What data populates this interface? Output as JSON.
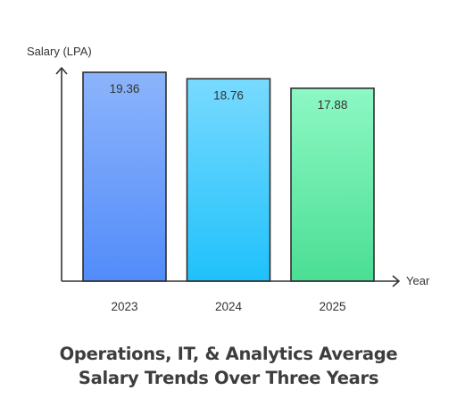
{
  "chart_data": {
    "type": "bar",
    "title_lines": [
      "Operations, IT, & Analytics Average",
      "Salary Trends Over Three Years"
    ],
    "xlabel": "Year",
    "ylabel": "Salary (LPA)",
    "categories": [
      "2023",
      "2024",
      "2025"
    ],
    "values": [
      19.36,
      18.76,
      17.88
    ],
    "value_labels": [
      "19.36",
      "18.76",
      "17.88"
    ],
    "ylim": [
      0,
      19.36
    ],
    "grid": false,
    "legend": "none",
    "bar_gradients": [
      {
        "top": "#8cb4fb",
        "bottom": "#528cfa"
      },
      {
        "top": "#79daff",
        "bottom": "#1fc1fb"
      },
      {
        "top": "#8df8c4",
        "bottom": "#4bde94"
      }
    ],
    "colors": {
      "axis": "#333333",
      "bar_stroke": "#2e2e2e",
      "text": "#333333",
      "title": "#3d3d3d"
    }
  }
}
